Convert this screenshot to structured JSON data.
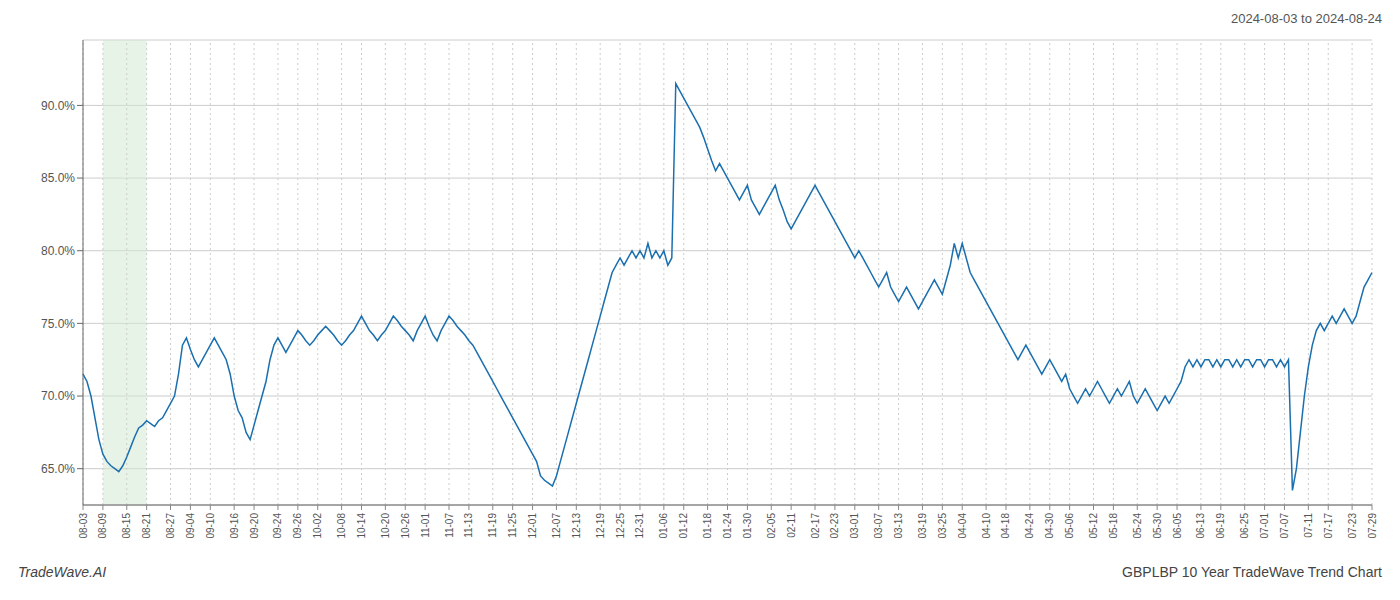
{
  "chart_data": {
    "type": "line",
    "title": "GBPLBP 10 Year TradeWave Trend Chart",
    "subtitle": "2024-08-03 to 2024-08-24",
    "annotations": [
      "TradeWave.AI"
    ],
    "color": "#1a6faf",
    "grid": true,
    "highlight": {
      "from": "08-09",
      "to": "08-21",
      "color": "#d6ead6"
    },
    "ylim": [
      62.5,
      94.5
    ],
    "yticks": [
      {
        "value": 65.0,
        "label": "65.0%"
      },
      {
        "value": 70.0,
        "label": "70.0%"
      },
      {
        "value": 75.0,
        "label": "75.0%"
      },
      {
        "value": 80.0,
        "label": "80.0%"
      },
      {
        "value": 85.0,
        "label": "85.0%"
      },
      {
        "value": 90.0,
        "label": "90.0%"
      }
    ],
    "categories": [
      "08-03",
      null,
      null,
      null,
      null,
      "08-09",
      null,
      null,
      null,
      null,
      null,
      "08-15",
      null,
      null,
      null,
      null,
      "08-21",
      null,
      null,
      null,
      null,
      null,
      "08-27",
      null,
      null,
      null,
      null,
      "09-04",
      null,
      null,
      null,
      null,
      "09-10",
      null,
      null,
      null,
      null,
      null,
      "09-16",
      null,
      null,
      null,
      null,
      "09-20",
      null,
      null,
      null,
      null,
      null,
      "09-24",
      null,
      null,
      null,
      null,
      "09-26",
      null,
      null,
      null,
      null,
      "10-02",
      null,
      null,
      null,
      null,
      null,
      "10-08",
      null,
      null,
      null,
      null,
      "10-14",
      null,
      null,
      null,
      null,
      null,
      "10-20",
      null,
      null,
      null,
      null,
      "10-26",
      null,
      null,
      null,
      null,
      "11-01",
      null,
      null,
      null,
      null,
      null,
      "11-07",
      null,
      null,
      null,
      null,
      "11-13",
      null,
      null,
      null,
      null,
      null,
      "11-19",
      null,
      null,
      null,
      null,
      "11-25",
      null,
      null,
      null,
      null,
      "12-01",
      null,
      null,
      null,
      null,
      null,
      "12-07",
      null,
      null,
      null,
      null,
      "12-13",
      null,
      null,
      null,
      null,
      null,
      "12-19",
      null,
      null,
      null,
      null,
      "12-25",
      null,
      null,
      null,
      null,
      "12-31",
      null,
      null,
      null,
      null,
      null,
      "01-06",
      null,
      null,
      null,
      null,
      "01-12",
      null,
      null,
      null,
      null,
      null,
      "01-18",
      null,
      null,
      null,
      null,
      "01-24",
      null,
      null,
      null,
      null,
      "01-30",
      null,
      null,
      null,
      null,
      null,
      "02-05",
      null,
      null,
      null,
      null,
      "02-11",
      null,
      null,
      null,
      null,
      null,
      "02-17",
      null,
      null,
      null,
      null,
      "02-23",
      null,
      null,
      null,
      null,
      "03-01",
      null,
      null,
      null,
      null,
      null,
      "03-07",
      null,
      null,
      null,
      null,
      "03-13",
      null,
      null,
      null,
      null,
      null,
      "03-19",
      null,
      null,
      null,
      null,
      "03-25",
      null,
      null,
      null,
      null,
      "04-04",
      null,
      null,
      null,
      null,
      null,
      "04-10",
      null,
      null,
      null,
      null,
      "04-18",
      null,
      null,
      null,
      null,
      null,
      "04-24",
      null,
      null,
      null,
      null,
      "04-30",
      null,
      null,
      null,
      null,
      "05-06",
      null,
      null,
      null,
      null,
      null,
      "05-12",
      null,
      null,
      null,
      null,
      "05-18",
      null,
      null,
      null,
      null,
      null,
      "05-24",
      null,
      null,
      null,
      null,
      "05-30",
      null,
      null,
      null,
      null,
      "06-05",
      null,
      null,
      null,
      null,
      null,
      "06-13",
      null,
      null,
      null,
      null,
      "06-19",
      null,
      null,
      null,
      null,
      null,
      "06-25",
      null,
      null,
      null,
      null,
      "07-01",
      null,
      null,
      null,
      null,
      "07-07",
      null,
      null,
      null,
      null,
      null,
      "07-11",
      null,
      null,
      null,
      null,
      "07-17",
      null,
      null,
      null,
      null,
      null,
      "07-23",
      null,
      null,
      null,
      null,
      "07-29"
    ],
    "values": [
      71.5,
      71.0,
      70.0,
      68.5,
      67.0,
      66.0,
      65.5,
      65.2,
      65.0,
      64.8,
      65.2,
      65.8,
      66.5,
      67.2,
      67.8,
      68.0,
      68.3,
      68.1,
      67.9,
      68.3,
      68.5,
      69.0,
      69.5,
      70.0,
      71.5,
      73.5,
      74.0,
      73.2,
      72.5,
      72.0,
      72.5,
      73.0,
      73.5,
      74.0,
      73.5,
      73.0,
      72.5,
      71.5,
      70.0,
      69.0,
      68.5,
      67.5,
      67.0,
      68.0,
      69.0,
      70.0,
      71.0,
      72.5,
      73.5,
      74.0,
      73.5,
      73.0,
      73.5,
      74.0,
      74.5,
      74.2,
      73.8,
      73.5,
      73.8,
      74.2,
      74.5,
      74.8,
      74.5,
      74.2,
      73.8,
      73.5,
      73.8,
      74.2,
      74.5,
      75.0,
      75.5,
      75.0,
      74.5,
      74.2,
      73.8,
      74.2,
      74.5,
      75.0,
      75.5,
      75.2,
      74.8,
      74.5,
      74.2,
      73.8,
      74.5,
      75.0,
      75.5,
      74.8,
      74.2,
      73.8,
      74.5,
      75.0,
      75.5,
      75.2,
      74.8,
      74.5,
      74.2,
      73.8,
      73.5,
      73.0,
      72.5,
      72.0,
      71.5,
      71.0,
      70.5,
      70.0,
      69.5,
      69.0,
      68.5,
      68.0,
      67.5,
      67.0,
      66.5,
      66.0,
      65.5,
      64.5,
      64.2,
      64.0,
      63.8,
      64.5,
      65.5,
      66.5,
      67.5,
      68.5,
      69.5,
      70.5,
      71.5,
      72.5,
      73.5,
      74.5,
      75.5,
      76.5,
      77.5,
      78.5,
      79.0,
      79.5,
      79.0,
      79.5,
      80.0,
      79.5,
      80.0,
      79.5,
      80.5,
      79.5,
      80.0,
      79.5,
      80.0,
      79.0,
      79.5,
      91.5,
      91.0,
      90.5,
      90.0,
      89.5,
      89.0,
      88.5,
      87.8,
      87.0,
      86.2,
      85.5,
      86.0,
      85.5,
      85.0,
      84.5,
      84.0,
      83.5,
      84.0,
      84.5,
      83.5,
      83.0,
      82.5,
      83.0,
      83.5,
      84.0,
      84.5,
      83.5,
      82.8,
      82.0,
      81.5,
      82.0,
      82.5,
      83.0,
      83.5,
      84.0,
      84.5,
      84.0,
      83.5,
      83.0,
      82.5,
      82.0,
      81.5,
      81.0,
      80.5,
      80.0,
      79.5,
      80.0,
      79.5,
      79.0,
      78.5,
      78.0,
      77.5,
      78.0,
      78.5,
      77.5,
      77.0,
      76.5,
      77.0,
      77.5,
      77.0,
      76.5,
      76.0,
      76.5,
      77.0,
      77.5,
      78.0,
      77.5,
      77.0,
      78.0,
      79.0,
      80.5,
      79.5,
      80.5,
      79.5,
      78.5,
      78.0,
      77.5,
      77.0,
      76.5,
      76.0,
      75.5,
      75.0,
      74.5,
      74.0,
      73.5,
      73.0,
      72.5,
      73.0,
      73.5,
      73.0,
      72.5,
      72.0,
      71.5,
      72.0,
      72.5,
      72.0,
      71.5,
      71.0,
      71.5,
      70.5,
      70.0,
      69.5,
      70.0,
      70.5,
      70.0,
      70.5,
      71.0,
      70.5,
      70.0,
      69.5,
      70.0,
      70.5,
      70.0,
      70.5,
      71.0,
      70.0,
      69.5,
      70.0,
      70.5,
      70.0,
      69.5,
      69.0,
      69.5,
      70.0,
      69.5,
      70.0,
      70.5,
      71.0,
      72.0,
      72.5,
      72.0,
      72.5,
      72.0,
      72.5,
      72.5,
      72.0,
      72.5,
      72.0,
      72.5,
      72.5,
      72.0,
      72.5,
      72.0,
      72.5,
      72.5,
      72.0,
      72.5,
      72.5,
      72.0,
      72.5,
      72.5,
      72.0,
      72.5,
      72.0,
      72.5,
      63.5,
      65.0,
      67.5,
      70.0,
      72.0,
      73.5,
      74.5,
      75.0,
      74.5,
      75.0,
      75.5,
      75.0,
      75.5,
      76.0,
      75.5,
      75.0,
      75.5,
      76.5,
      77.5,
      78.0,
      78.5
    ]
  }
}
